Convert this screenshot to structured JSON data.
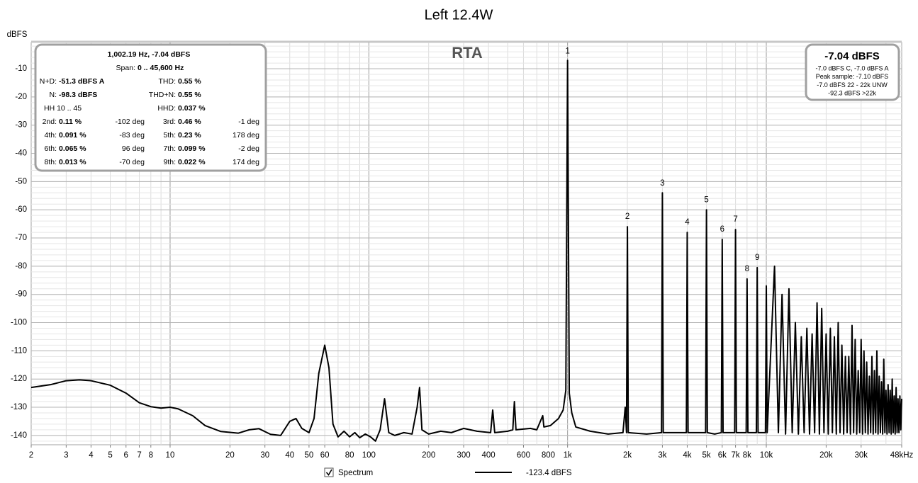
{
  "chart_data": {
    "type": "line",
    "title": "Left 12.4W",
    "watermark": "RTA",
    "y_label": "dBFS",
    "log_x": true,
    "grid": true,
    "xlim": [
      2,
      48000
    ],
    "ylim": [
      -143.3,
      -0.7
    ],
    "yticks": [
      -10,
      -20,
      -30,
      -40,
      -50,
      -60,
      -70,
      -80,
      -90,
      -100,
      -110,
      -120,
      -130,
      -140
    ],
    "xticks": [
      2,
      3,
      4,
      5,
      6,
      7,
      8,
      10,
      20,
      30,
      40,
      50,
      60,
      80,
      100,
      200,
      300,
      400,
      600,
      800,
      {
        "value": 1000,
        "label": "1k"
      },
      {
        "value": 2000,
        "label": "2k"
      },
      {
        "value": 3000,
        "label": "3k"
      },
      {
        "value": 4000,
        "label": "4k"
      },
      {
        "value": 5000,
        "label": "5k"
      },
      {
        "value": 6000,
        "label": "6k"
      },
      {
        "value": 7000,
        "label": "7k"
      },
      {
        "value": 8000,
        "label": "8k"
      },
      {
        "value": 10000,
        "label": "10k"
      },
      {
        "value": 20000,
        "label": "20k"
      },
      {
        "value": 30000,
        "label": "30k"
      },
      {
        "value": 48000,
        "label": "48kHz"
      }
    ],
    "x": [
      2,
      2.5,
      3,
      3.5,
      4,
      5,
      6,
      7,
      8,
      9,
      10,
      11,
      13,
      15,
      18,
      22,
      25,
      28,
      32,
      36,
      40,
      43,
      46,
      50,
      53,
      56,
      60,
      63,
      66,
      70,
      75,
      80,
      85,
      90,
      96,
      102,
      108,
      114,
      120,
      126,
      135,
      150,
      165,
      175,
      180,
      185,
      200,
      230,
      260,
      300,
      350,
      410,
      420,
      430,
      500,
      530,
      540,
      550,
      650,
      700,
      750,
      760,
      820,
      900,
      950,
      980,
      1000,
      1020,
      1050,
      1100,
      1300,
      1600,
      1900,
      1950,
      1980,
      2000,
      2020,
      2500,
      2970,
      3000,
      3030,
      3500,
      3960,
      4000,
      4040,
      4500,
      4950,
      5000,
      5050,
      5500,
      5940,
      6000,
      6060,
      6930,
      7000,
      7070,
      7920,
      8000,
      8080,
      8910,
      9000,
      9090,
      9900,
      10000,
      10100,
      11000,
      11500,
      12000,
      12500,
      13000,
      13500,
      14000,
      14500,
      15000,
      15500,
      16000,
      16500,
      17000,
      17500,
      18000,
      18500,
      19000,
      19500,
      20000,
      20500,
      21000,
      21500,
      22000,
      22500,
      23000,
      23500,
      24000,
      24500,
      25000,
      25500,
      26000,
      26500,
      27000,
      27500,
      28000,
      28500,
      29000,
      29500,
      30000,
      30500,
      31000,
      31500,
      32000,
      32500,
      33000,
      33500,
      34000,
      34500,
      35000,
      35500,
      36000,
      36500,
      37000,
      37500,
      38000,
      38500,
      39000,
      39500,
      40000,
      40500,
      41000,
      41500,
      42000,
      42500,
      43000,
      43500,
      44000,
      44500,
      45000,
      45500,
      46000,
      46500,
      47000,
      47500,
      48000
    ],
    "series": [
      {
        "name": "Spectrum",
        "color": "#000000",
        "legend_value": "-123.4 dBFS",
        "values": [
          -123,
          -122,
          -120.6,
          -120.3,
          -120.6,
          -122.2,
          -125,
          -128.4,
          -129.8,
          -130.3,
          -130,
          -130.6,
          -133,
          -136.5,
          -138.6,
          -139.2,
          -138,
          -137.6,
          -139.6,
          -140,
          -135,
          -134,
          -137.5,
          -139,
          -134,
          -118,
          -108,
          -116,
          -136,
          -140.5,
          -138.5,
          -140.5,
          -139,
          -140.8,
          -139.5,
          -140.5,
          -142,
          -138,
          -127,
          -139,
          -140,
          -139,
          -139.5,
          -130,
          -123,
          -138,
          -139.5,
          -138.5,
          -139,
          -137.5,
          -138.5,
          -139,
          -131,
          -139,
          -138.5,
          -138,
          -128,
          -138,
          -137.5,
          -138,
          -133,
          -137,
          -136.5,
          -134,
          -131,
          -124,
          -7.04,
          -125,
          -132,
          -137,
          -138.5,
          -139.5,
          -139,
          -130,
          -139,
          -66,
          -139,
          -139.5,
          -139,
          -54,
          -139,
          -139,
          -139,
          -68,
          -139,
          -139,
          -139,
          -60,
          -139,
          -139.5,
          -139,
          -70.5,
          -139,
          -139,
          -67,
          -139,
          -139,
          -84.5,
          -139,
          -139,
          -80.5,
          -139,
          -139,
          -87,
          -139,
          -80,
          -139,
          -90,
          -139.5,
          -88,
          -139,
          -100,
          -139.5,
          -105,
          -139,
          -102,
          -139.5,
          -104,
          -139,
          -93,
          -139.5,
          -95,
          -139,
          -104,
          -139.5,
          -102,
          -139,
          -105,
          -139.5,
          -100,
          -139,
          -108,
          -139.5,
          -112,
          -139,
          -112,
          -139.5,
          -101,
          -139,
          -106,
          -139.5,
          -117,
          -139,
          -106,
          -139.5,
          -110,
          -139,
          -114,
          -139.5,
          -119,
          -139,
          -112,
          -139.5,
          -117,
          -139,
          -110,
          -139.5,
          -119,
          -139,
          -121,
          -139.5,
          -113,
          -139,
          -124,
          -139.5,
          -122,
          -139,
          -124,
          -139.5,
          -120,
          -139,
          -126,
          -139.5,
          -123,
          -139,
          -127,
          -139,
          -126,
          -138,
          -127
        ]
      }
    ],
    "annotations": [
      {
        "text": "1",
        "x": 1000,
        "y": -3.8
      },
      {
        "text": "2",
        "x": 2000,
        "y": -62.5
      },
      {
        "text": "3",
        "x": 3000,
        "y": -50.6
      },
      {
        "text": "4",
        "x": 4000,
        "y": -64.5
      },
      {
        "text": "5",
        "x": 5000,
        "y": -56.5
      },
      {
        "text": "6",
        "x": 6000,
        "y": -67
      },
      {
        "text": "7",
        "x": 7000,
        "y": -63.5
      },
      {
        "text": "8",
        "x": 8000,
        "y": -81
      },
      {
        "text": "9",
        "x": 9000,
        "y": -77
      }
    ]
  },
  "info_panel": {
    "cursor": "1,002.19 Hz, -7.04 dBFS",
    "span_label": "Span:",
    "span_value": "0 .. 45,600 Hz",
    "rows": [
      [
        {
          "label": "N+D:",
          "value": "-51.3 dBFS A"
        },
        {
          "label": "THD:",
          "value": "0.55 %"
        }
      ],
      [
        {
          "label": "N:",
          "value": "-98.3 dBFS"
        },
        {
          "label": "THD+N:",
          "value": "0.55 %"
        }
      ],
      [
        {
          "label": "HH 10 .. 45"
        },
        {
          "label": "HHD:",
          "value": "0.037 %"
        }
      ],
      [
        {
          "label": "2nd:",
          "value": "0.11 %",
          "phase": "-102 deg"
        },
        {
          "label": "3rd:",
          "value": "0.46 %",
          "phase": "-1 deg"
        }
      ],
      [
        {
          "label": "4th:",
          "value": "0.091 %",
          "phase": "-83 deg"
        },
        {
          "label": "5th:",
          "value": "0.23 %",
          "phase": "178 deg"
        }
      ],
      [
        {
          "label": "6th:",
          "value": "0.065 %",
          "phase": "96 deg"
        },
        {
          "label": "7th:",
          "value": "0.099 %",
          "phase": "-2 deg"
        }
      ],
      [
        {
          "label": "8th:",
          "value": "0.013 %",
          "phase": "-70 deg"
        },
        {
          "label": "9th:",
          "value": "0.022 %",
          "phase": "174 deg"
        }
      ]
    ]
  },
  "readout": {
    "main": "-7.04 dBFS",
    "lines": [
      "-7.0 dBFS C, -7.0 dBFS A",
      "Peak sample: -7.10 dBFS",
      "-7.0 dBFS 22 - 22k UNW",
      "-92.3 dBFS >22k"
    ]
  }
}
